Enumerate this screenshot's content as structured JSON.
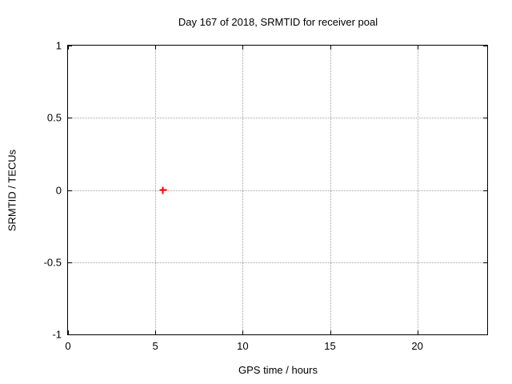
{
  "chart_data": {
    "type": "scatter",
    "title": "Day 167 of 2018, SRMTID for receiver poal",
    "xlabel": "GPS time / hours",
    "ylabel": "SRMTID / TECUs",
    "xlim": [
      0,
      24
    ],
    "ylim": [
      -1,
      1
    ],
    "grid": true,
    "legend_position": "none",
    "xticks": [
      {
        "v": 0,
        "label": "0"
      },
      {
        "v": 5,
        "label": "5"
      },
      {
        "v": 10,
        "label": "10"
      },
      {
        "v": 15,
        "label": "15"
      },
      {
        "v": 20,
        "label": "20"
      }
    ],
    "yticks": [
      {
        "v": -1,
        "label": "-1"
      },
      {
        "v": -0.5,
        "label": "-0.5"
      },
      {
        "v": 0,
        "label": "0"
      },
      {
        "v": 0.5,
        "label": "0.5"
      },
      {
        "v": 1,
        "label": "1"
      }
    ],
    "series": [
      {
        "marker": "plus",
        "color": "#ff0000",
        "points": [
          {
            "x": 5.45,
            "y": 0
          }
        ]
      }
    ]
  },
  "colors": {
    "background": "#ffffff",
    "axis": "#000000",
    "grid": "#a0a0a0",
    "text": "#000000"
  }
}
